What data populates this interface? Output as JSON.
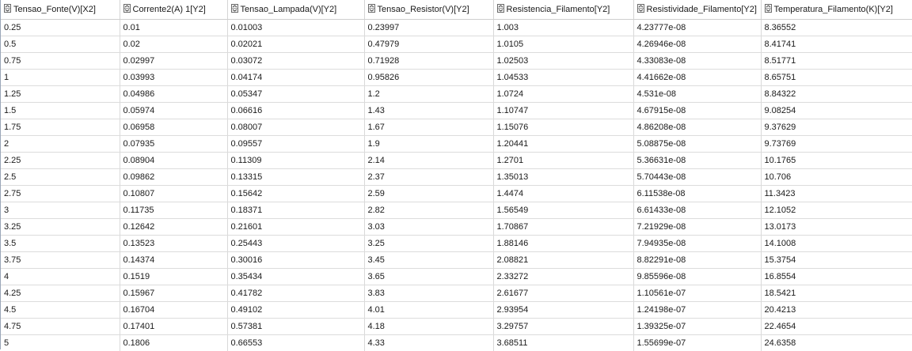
{
  "table": {
    "columns": [
      "Tensao_Fonte(V)[X2]",
      "Corrente2(A) 1[Y2]",
      "Tensao_Lampada(V)[Y2]",
      "Tensao_Resistor(V)[Y2]",
      "Resistencia_Filamento[Y2]",
      "Resistividade_Filamento[Y2]",
      "Temperatura_Filamento(K)[Y2]"
    ],
    "column_icon": "sort-toggle-icon",
    "rows": [
      [
        "0.25",
        "0.01",
        "0.01003",
        "0.23997",
        "1.003",
        "4.23777e-08",
        "8.36552"
      ],
      [
        "0.5",
        "0.02",
        "0.02021",
        "0.47979",
        "1.0105",
        "4.26946e-08",
        "8.41741"
      ],
      [
        "0.75",
        "0.02997",
        "0.03072",
        "0.71928",
        "1.02503",
        "4.33083e-08",
        "8.51771"
      ],
      [
        "1",
        "0.03993",
        "0.04174",
        "0.95826",
        "1.04533",
        "4.41662e-08",
        "8.65751"
      ],
      [
        "1.25",
        "0.04986",
        "0.05347",
        "1.2",
        "1.0724",
        "4.531e-08",
        "8.84322"
      ],
      [
        "1.5",
        "0.05974",
        "0.06616",
        "1.43",
        "1.10747",
        "4.67915e-08",
        "9.08254"
      ],
      [
        "1.75",
        "0.06958",
        "0.08007",
        "1.67",
        "1.15076",
        "4.86208e-08",
        "9.37629"
      ],
      [
        "2",
        "0.07935",
        "0.09557",
        "1.9",
        "1.20441",
        "5.08875e-08",
        "9.73769"
      ],
      [
        "2.25",
        "0.08904",
        "0.11309",
        "2.14",
        "1.2701",
        "5.36631e-08",
        "10.1765"
      ],
      [
        "2.5",
        "0.09862",
        "0.13315",
        "2.37",
        "1.35013",
        "5.70443e-08",
        "10.706"
      ],
      [
        "2.75",
        "0.10807",
        "0.15642",
        "2.59",
        "1.4474",
        "6.11538e-08",
        "11.3423"
      ],
      [
        "3",
        "0.11735",
        "0.18371",
        "2.82",
        "1.56549",
        "6.61433e-08",
        "12.1052"
      ],
      [
        "3.25",
        "0.12642",
        "0.21601",
        "3.03",
        "1.70867",
        "7.21929e-08",
        "13.0173"
      ],
      [
        "3.5",
        "0.13523",
        "0.25443",
        "3.25",
        "1.88146",
        "7.94935e-08",
        "14.1008"
      ],
      [
        "3.75",
        "0.14374",
        "0.30016",
        "3.45",
        "2.08821",
        "8.82291e-08",
        "15.3754"
      ],
      [
        "4",
        "0.1519",
        "0.35434",
        "3.65",
        "2.33272",
        "9.85596e-08",
        "16.8554"
      ],
      [
        "4.25",
        "0.15967",
        "0.41782",
        "3.83",
        "2.61677",
        "1.10561e-07",
        "18.5421"
      ],
      [
        "4.5",
        "0.16704",
        "0.49102",
        "4.01",
        "2.93954",
        "1.24198e-07",
        "20.4213"
      ],
      [
        "4.75",
        "0.17401",
        "0.57381",
        "4.18",
        "3.29757",
        "1.39325e-07",
        "22.4654"
      ],
      [
        "5",
        "0.1806",
        "0.66553",
        "4.33",
        "3.68511",
        "1.55699e-07",
        "24.6358"
      ]
    ]
  },
  "colors": {
    "grid_line": "#d9d9d9",
    "left_border": "#9aa6b8",
    "text": "#1a1a1a"
  }
}
